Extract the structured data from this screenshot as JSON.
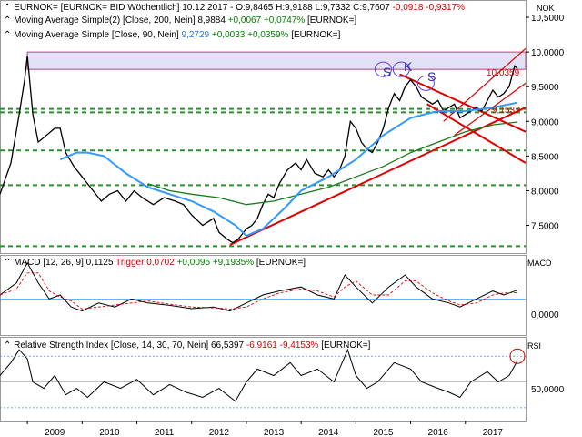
{
  "header": {
    "price_line": {
      "name": "EURNOK= [EURNOK= BID Wöchentlich]",
      "date": "10.12.2017",
      "ohlc_prefix": "O:9,8465 H:9,9188 L:9,7332 C:9,7607",
      "change": "-0,0918",
      "change_pct": "-0,9317%"
    },
    "ma200_line": {
      "name": "Moving Average Simple(2) [Close, 200, Nein]",
      "value": "8,9884",
      "change": "+0,0067",
      "change_pct": "+0,0747%",
      "symbol": "[EURNOK=]"
    },
    "ma90_line": {
      "name": "Moving Average Simple [Close, 90, Nein]",
      "value": "9,2729",
      "change": "+0,0033",
      "change_pct": "+0,0359%",
      "symbol": "[EURNOK=]"
    }
  },
  "currency_label": "NOK",
  "annotations": {
    "head_shoulders": [
      "S",
      "K",
      "S"
    ],
    "last_price_tag": "10,0359",
    "line_value_tag": "9,1537"
  },
  "macd_panel": {
    "title": "MACD [12, 26, 9]",
    "value": "0,1125",
    "trigger_label": "Trigger",
    "trigger_value": "0,0702",
    "change": "+0,0095",
    "change_pct": "+9,1935%",
    "symbol": "[EURNOK=]",
    "axis_label": "MACD",
    "tick": "0,0000"
  },
  "rsi_panel": {
    "title": "Relative Strength Index [Close, 14, 30, 70, Nein]",
    "value": "66,5397",
    "change": "-6,9161",
    "change_pct": "-9,4153%",
    "symbol": "[EURNOK=]",
    "axis_label": "RSI",
    "tick": "50,0000"
  },
  "colors": {
    "up_candle": "#ffffff",
    "down_candle": "#000000",
    "ma90": "#3399ff",
    "ma200": "#1a7a1a",
    "support_lines": "#2f8f2f",
    "trend_lines": "#e00000",
    "resistance_zone": "#c8c8f0",
    "macd_trigger": "#e00000"
  },
  "chart_data": {
    "type": "candlestick",
    "title": "EURNOK= [EURNOK= BID Wöchentlich]",
    "x_ticks": [
      "2009",
      "2010",
      "2011",
      "2012",
      "2013",
      "2014",
      "2015",
      "2016",
      "2017"
    ],
    "y_ticks": [
      "7,5000",
      "8,0000",
      "8,5000",
      "9,0000",
      "9,5000",
      "10,0000",
      "10,5000"
    ],
    "ylim": [
      7.1,
      10.75
    ],
    "x_range": [
      2008.5,
      2018.1
    ],
    "close_series": [
      [
        2008.5,
        7.95
      ],
      [
        2008.7,
        8.4
      ],
      [
        2008.85,
        9.1
      ],
      [
        2008.95,
        9.6
      ],
      [
        2009.0,
        9.95
      ],
      [
        2009.1,
        9.1
      ],
      [
        2009.2,
        8.7
      ],
      [
        2009.35,
        8.8
      ],
      [
        2009.5,
        8.9
      ],
      [
        2009.6,
        8.9
      ],
      [
        2009.7,
        8.55
      ],
      [
        2009.85,
        8.35
      ],
      [
        2010.0,
        8.2
      ],
      [
        2010.2,
        8.0
      ],
      [
        2010.35,
        7.85
      ],
      [
        2010.5,
        7.95
      ],
      [
        2010.65,
        8.0
      ],
      [
        2010.8,
        7.85
      ],
      [
        2010.95,
        8.0
      ],
      [
        2011.1,
        7.9
      ],
      [
        2011.3,
        7.8
      ],
      [
        2011.5,
        7.9
      ],
      [
        2011.7,
        7.85
      ],
      [
        2011.85,
        7.8
      ],
      [
        2012.0,
        7.65
      ],
      [
        2012.2,
        7.5
      ],
      [
        2012.4,
        7.6
      ],
      [
        2012.5,
        7.4
      ],
      [
        2012.65,
        7.3
      ],
      [
        2012.75,
        7.25
      ],
      [
        2012.85,
        7.3
      ],
      [
        2013.0,
        7.45
      ],
      [
        2013.1,
        7.5
      ],
      [
        2013.2,
        7.6
      ],
      [
        2013.3,
        7.8
      ],
      [
        2013.4,
        7.95
      ],
      [
        2013.5,
        7.9
      ],
      [
        2013.6,
        8.1
      ],
      [
        2013.75,
        8.3
      ],
      [
        2013.9,
        8.4
      ],
      [
        2014.0,
        8.3
      ],
      [
        2014.1,
        8.45
      ],
      [
        2014.25,
        8.25
      ],
      [
        2014.4,
        8.2
      ],
      [
        2014.5,
        8.3
      ],
      [
        2014.6,
        8.2
      ],
      [
        2014.7,
        8.3
      ],
      [
        2014.8,
        8.5
      ],
      [
        2014.9,
        9.0
      ],
      [
        2015.0,
        8.9
      ],
      [
        2015.1,
        8.7
      ],
      [
        2015.2,
        8.6
      ],
      [
        2015.3,
        8.55
      ],
      [
        2015.4,
        8.7
      ],
      [
        2015.5,
        8.9
      ],
      [
        2015.6,
        9.2
      ],
      [
        2015.7,
        9.4
      ],
      [
        2015.8,
        9.3
      ],
      [
        2015.9,
        9.5
      ],
      [
        2016.0,
        9.6
      ],
      [
        2016.1,
        9.5
      ],
      [
        2016.2,
        9.35
      ],
      [
        2016.3,
        9.3
      ],
      [
        2016.4,
        9.25
      ],
      [
        2016.5,
        9.3
      ],
      [
        2016.6,
        9.15
      ],
      [
        2016.7,
        9.2
      ],
      [
        2016.8,
        9.25
      ],
      [
        2016.9,
        9.05
      ],
      [
        2017.0,
        9.1
      ],
      [
        2017.1,
        9.15
      ],
      [
        2017.2,
        9.2
      ],
      [
        2017.3,
        9.15
      ],
      [
        2017.4,
        9.3
      ],
      [
        2017.5,
        9.45
      ],
      [
        2017.6,
        9.35
      ],
      [
        2017.7,
        9.4
      ],
      [
        2017.8,
        9.5
      ],
      [
        2017.9,
        9.8
      ],
      [
        2017.95,
        9.76
      ]
    ],
    "series": [
      {
        "name": "Moving Average Simple(2) [Close, 200, Nein]",
        "points": [
          [
            2011.2,
            8.1
          ],
          [
            2011.6,
            8.0
          ],
          [
            2012.0,
            7.95
          ],
          [
            2012.5,
            7.9
          ],
          [
            2013.0,
            7.8
          ],
          [
            2013.5,
            7.85
          ],
          [
            2014.0,
            7.95
          ],
          [
            2014.5,
            8.05
          ],
          [
            2015.0,
            8.2
          ],
          [
            2015.5,
            8.35
          ],
          [
            2016.0,
            8.55
          ],
          [
            2016.5,
            8.7
          ],
          [
            2017.0,
            8.85
          ],
          [
            2017.5,
            8.95
          ],
          [
            2017.95,
            8.99
          ]
        ]
      },
      {
        "name": "Moving Average Simple [Close, 90, Nein]",
        "points": [
          [
            2009.6,
            8.45
          ],
          [
            2009.9,
            8.55
          ],
          [
            2010.1,
            8.55
          ],
          [
            2010.4,
            8.5
          ],
          [
            2010.8,
            8.25
          ],
          [
            2011.2,
            8.05
          ],
          [
            2011.6,
            7.95
          ],
          [
            2012.0,
            7.85
          ],
          [
            2012.4,
            7.7
          ],
          [
            2012.8,
            7.5
          ],
          [
            2013.0,
            7.35
          ],
          [
            2013.3,
            7.45
          ],
          [
            2013.7,
            7.75
          ],
          [
            2014.0,
            8.0
          ],
          [
            2014.5,
            8.2
          ],
          [
            2015.0,
            8.45
          ],
          [
            2015.5,
            8.8
          ],
          [
            2016.0,
            9.05
          ],
          [
            2016.5,
            9.15
          ],
          [
            2017.0,
            9.15
          ],
          [
            2017.5,
            9.2
          ],
          [
            2017.95,
            9.27
          ]
        ]
      }
    ],
    "macd": {
      "ylim": [
        -0.45,
        0.55
      ],
      "tick": 0.0,
      "series": [
        [
          2008.5,
          0.05
        ],
        [
          2008.8,
          0.2
        ],
        [
          2009.0,
          0.45
        ],
        [
          2009.2,
          0.2
        ],
        [
          2009.4,
          0.0
        ],
        [
          2009.6,
          0.05
        ],
        [
          2009.8,
          -0.1
        ],
        [
          2010.0,
          -0.15
        ],
        [
          2010.3,
          -0.05
        ],
        [
          2010.6,
          -0.1
        ],
        [
          2010.9,
          0.0
        ],
        [
          2011.2,
          -0.05
        ],
        [
          2011.6,
          -0.08
        ],
        [
          2012.0,
          -0.12
        ],
        [
          2012.4,
          -0.1
        ],
        [
          2012.7,
          -0.15
        ],
        [
          2013.0,
          -0.05
        ],
        [
          2013.3,
          0.05
        ],
        [
          2013.6,
          0.1
        ],
        [
          2014.0,
          0.15
        ],
        [
          2014.3,
          0.05
        ],
        [
          2014.6,
          0.0
        ],
        [
          2014.8,
          0.3
        ],
        [
          2015.0,
          0.15
        ],
        [
          2015.3,
          -0.05
        ],
        [
          2015.6,
          0.15
        ],
        [
          2015.9,
          0.3
        ],
        [
          2016.1,
          0.15
        ],
        [
          2016.4,
          0.0
        ],
        [
          2016.7,
          -0.05
        ],
        [
          2016.9,
          -0.1
        ],
        [
          2017.2,
          0.0
        ],
        [
          2017.5,
          0.1
        ],
        [
          2017.7,
          0.05
        ],
        [
          2017.95,
          0.11
        ]
      ]
    },
    "rsi": {
      "ylim": [
        20,
        85
      ],
      "tick": 50,
      "series": [
        [
          2008.5,
          55
        ],
        [
          2008.7,
          65
        ],
        [
          2008.85,
          75
        ],
        [
          2009.0,
          68
        ],
        [
          2009.1,
          50
        ],
        [
          2009.3,
          45
        ],
        [
          2009.5,
          55
        ],
        [
          2009.7,
          40
        ],
        [
          2009.9,
          45
        ],
        [
          2010.1,
          38
        ],
        [
          2010.4,
          50
        ],
        [
          2010.7,
          45
        ],
        [
          2011.0,
          52
        ],
        [
          2011.3,
          40
        ],
        [
          2011.6,
          48
        ],
        [
          2011.9,
          42
        ],
        [
          2012.2,
          38
        ],
        [
          2012.5,
          45
        ],
        [
          2012.8,
          35
        ],
        [
          2013.0,
          50
        ],
        [
          2013.2,
          60
        ],
        [
          2013.5,
          55
        ],
        [
          2013.8,
          65
        ],
        [
          2014.0,
          55
        ],
        [
          2014.3,
          60
        ],
        [
          2014.6,
          50
        ],
        [
          2014.85,
          75
        ],
        [
          2015.0,
          55
        ],
        [
          2015.2,
          45
        ],
        [
          2015.4,
          50
        ],
        [
          2015.7,
          65
        ],
        [
          2016.0,
          60
        ],
        [
          2016.2,
          50
        ],
        [
          2016.5,
          45
        ],
        [
          2016.7,
          42
        ],
        [
          2016.9,
          38
        ],
        [
          2017.1,
          50
        ],
        [
          2017.4,
          58
        ],
        [
          2017.6,
          50
        ],
        [
          2017.8,
          55
        ],
        [
          2017.95,
          66.5
        ]
      ]
    }
  }
}
